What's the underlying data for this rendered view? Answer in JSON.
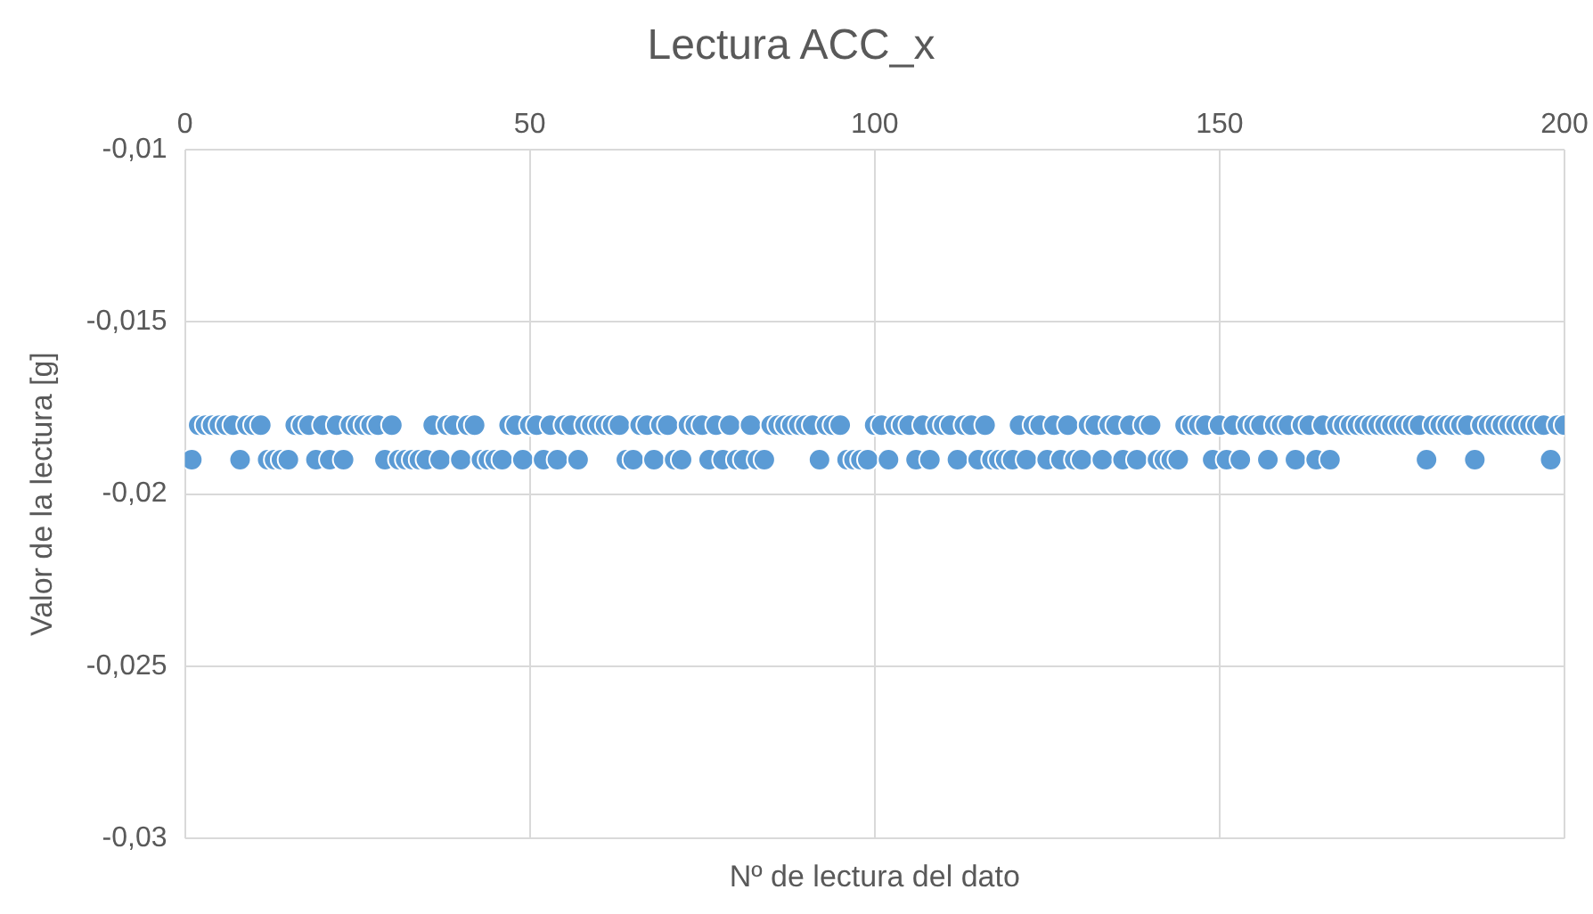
{
  "chart_data": {
    "type": "scatter",
    "title": "Lectura ACC_x",
    "xlabel": "Nº de lectura del dato",
    "ylabel": "Valor de la lectura [g]",
    "x": [
      1,
      2,
      3,
      4,
      5,
      6,
      7,
      8,
      9,
      10,
      11,
      12,
      13,
      14,
      15,
      16,
      17,
      18,
      19,
      20,
      21,
      22,
      23,
      24,
      25,
      26,
      27,
      28,
      29,
      30,
      31,
      32,
      33,
      34,
      35,
      36,
      37,
      38,
      39,
      40,
      41,
      42,
      43,
      44,
      45,
      46,
      47,
      48,
      49,
      50,
      51,
      52,
      53,
      54,
      55,
      56,
      57,
      58,
      59,
      60,
      61,
      62,
      63,
      64,
      65,
      66,
      67,
      68,
      69,
      70,
      71,
      72,
      73,
      74,
      75,
      76,
      77,
      78,
      79,
      80,
      81,
      82,
      83,
      84,
      85,
      86,
      87,
      88,
      89,
      90,
      91,
      92,
      93,
      94,
      95,
      96,
      97,
      98,
      99,
      100,
      101,
      102,
      103,
      104,
      105,
      106,
      107,
      108,
      109,
      110,
      111,
      112,
      113,
      114,
      115,
      116,
      117,
      118,
      119,
      120,
      121,
      122,
      123,
      124,
      125,
      126,
      127,
      128,
      129,
      130,
      131,
      132,
      133,
      134,
      135,
      136,
      137,
      138,
      139,
      140,
      141,
      142,
      143,
      144,
      145,
      146,
      147,
      148,
      149,
      150,
      151,
      152,
      153,
      154,
      155,
      156,
      157,
      158,
      159,
      160,
      161,
      162,
      163,
      164,
      165,
      166,
      167,
      168,
      169,
      170,
      171,
      172,
      173,
      174,
      175,
      176,
      177,
      178,
      179,
      180,
      181,
      182,
      183,
      184,
      185,
      186,
      187,
      188,
      189,
      190,
      191,
      192,
      193,
      194,
      195,
      196,
      197,
      198,
      199,
      200
    ],
    "values": [
      -0.019,
      -0.018,
      -0.018,
      -0.018,
      -0.018,
      -0.018,
      -0.018,
      -0.019,
      -0.018,
      -0.018,
      -0.018,
      -0.019,
      -0.019,
      -0.019,
      -0.019,
      -0.018,
      -0.018,
      -0.018,
      -0.019,
      -0.018,
      -0.019,
      -0.018,
      -0.019,
      -0.018,
      -0.018,
      -0.018,
      -0.018,
      -0.018,
      -0.019,
      -0.018,
      -0.019,
      -0.019,
      -0.019,
      -0.019,
      -0.019,
      -0.018,
      -0.019,
      -0.018,
      -0.018,
      -0.019,
      -0.018,
      -0.018,
      -0.019,
      -0.019,
      -0.019,
      -0.019,
      -0.018,
      -0.018,
      -0.019,
      -0.018,
      -0.018,
      -0.019,
      -0.018,
      -0.019,
      -0.018,
      -0.018,
      -0.019,
      -0.018,
      -0.018,
      -0.018,
      -0.018,
      -0.018,
      -0.018,
      -0.019,
      -0.019,
      -0.018,
      -0.018,
      -0.019,
      -0.018,
      -0.018,
      -0.019,
      -0.019,
      -0.018,
      -0.018,
      -0.018,
      -0.019,
      -0.018,
      -0.019,
      -0.018,
      -0.019,
      -0.019,
      -0.018,
      -0.019,
      -0.019,
      -0.018,
      -0.018,
      -0.018,
      -0.018,
      -0.018,
      -0.018,
      -0.018,
      -0.019,
      -0.018,
      -0.018,
      -0.018,
      -0.019,
      -0.019,
      -0.019,
      -0.019,
      -0.018,
      -0.018,
      -0.019,
      -0.018,
      -0.018,
      -0.018,
      -0.019,
      -0.018,
      -0.019,
      -0.018,
      -0.018,
      -0.018,
      -0.019,
      -0.018,
      -0.018,
      -0.019,
      -0.018,
      -0.019,
      -0.019,
      -0.019,
      -0.019,
      -0.018,
      -0.019,
      -0.018,
      -0.018,
      -0.019,
      -0.018,
      -0.019,
      -0.018,
      -0.019,
      -0.019,
      -0.018,
      -0.018,
      -0.019,
      -0.018,
      -0.018,
      -0.019,
      -0.018,
      -0.019,
      -0.018,
      -0.018,
      -0.019,
      -0.019,
      -0.019,
      -0.019,
      -0.018,
      -0.018,
      -0.018,
      -0.018,
      -0.019,
      -0.018,
      -0.019,
      -0.018,
      -0.019,
      -0.018,
      -0.018,
      -0.018,
      -0.019,
      -0.018,
      -0.018,
      -0.018,
      -0.019,
      -0.018,
      -0.018,
      -0.019,
      -0.018,
      -0.019,
      -0.018,
      -0.018,
      -0.018,
      -0.018,
      -0.018,
      -0.018,
      -0.018,
      -0.018,
      -0.018,
      -0.018,
      -0.018,
      -0.018,
      -0.018,
      -0.019,
      -0.018,
      -0.018,
      -0.018,
      -0.018,
      -0.018,
      -0.018,
      -0.019,
      -0.018,
      -0.018,
      -0.018,
      -0.018,
      -0.018,
      -0.018,
      -0.018,
      -0.018,
      -0.018,
      -0.018,
      -0.019,
      -0.018,
      -0.018
    ],
    "color": "#5b9bd5",
    "marker": "circle",
    "grid": true,
    "xlim": [
      0,
      200
    ],
    "xticks": [
      0,
      50,
      100,
      150,
      200
    ],
    "ylim": [
      -0.03,
      -0.01
    ],
    "yticks": [
      {
        "value": -0.03,
        "label": "-0,03"
      },
      {
        "value": -0.025,
        "label": "-0,025"
      },
      {
        "value": -0.02,
        "label": "-0,02"
      },
      {
        "value": -0.015,
        "label": "-0,015"
      },
      {
        "value": -0.01,
        "label": "-0,01"
      }
    ]
  }
}
